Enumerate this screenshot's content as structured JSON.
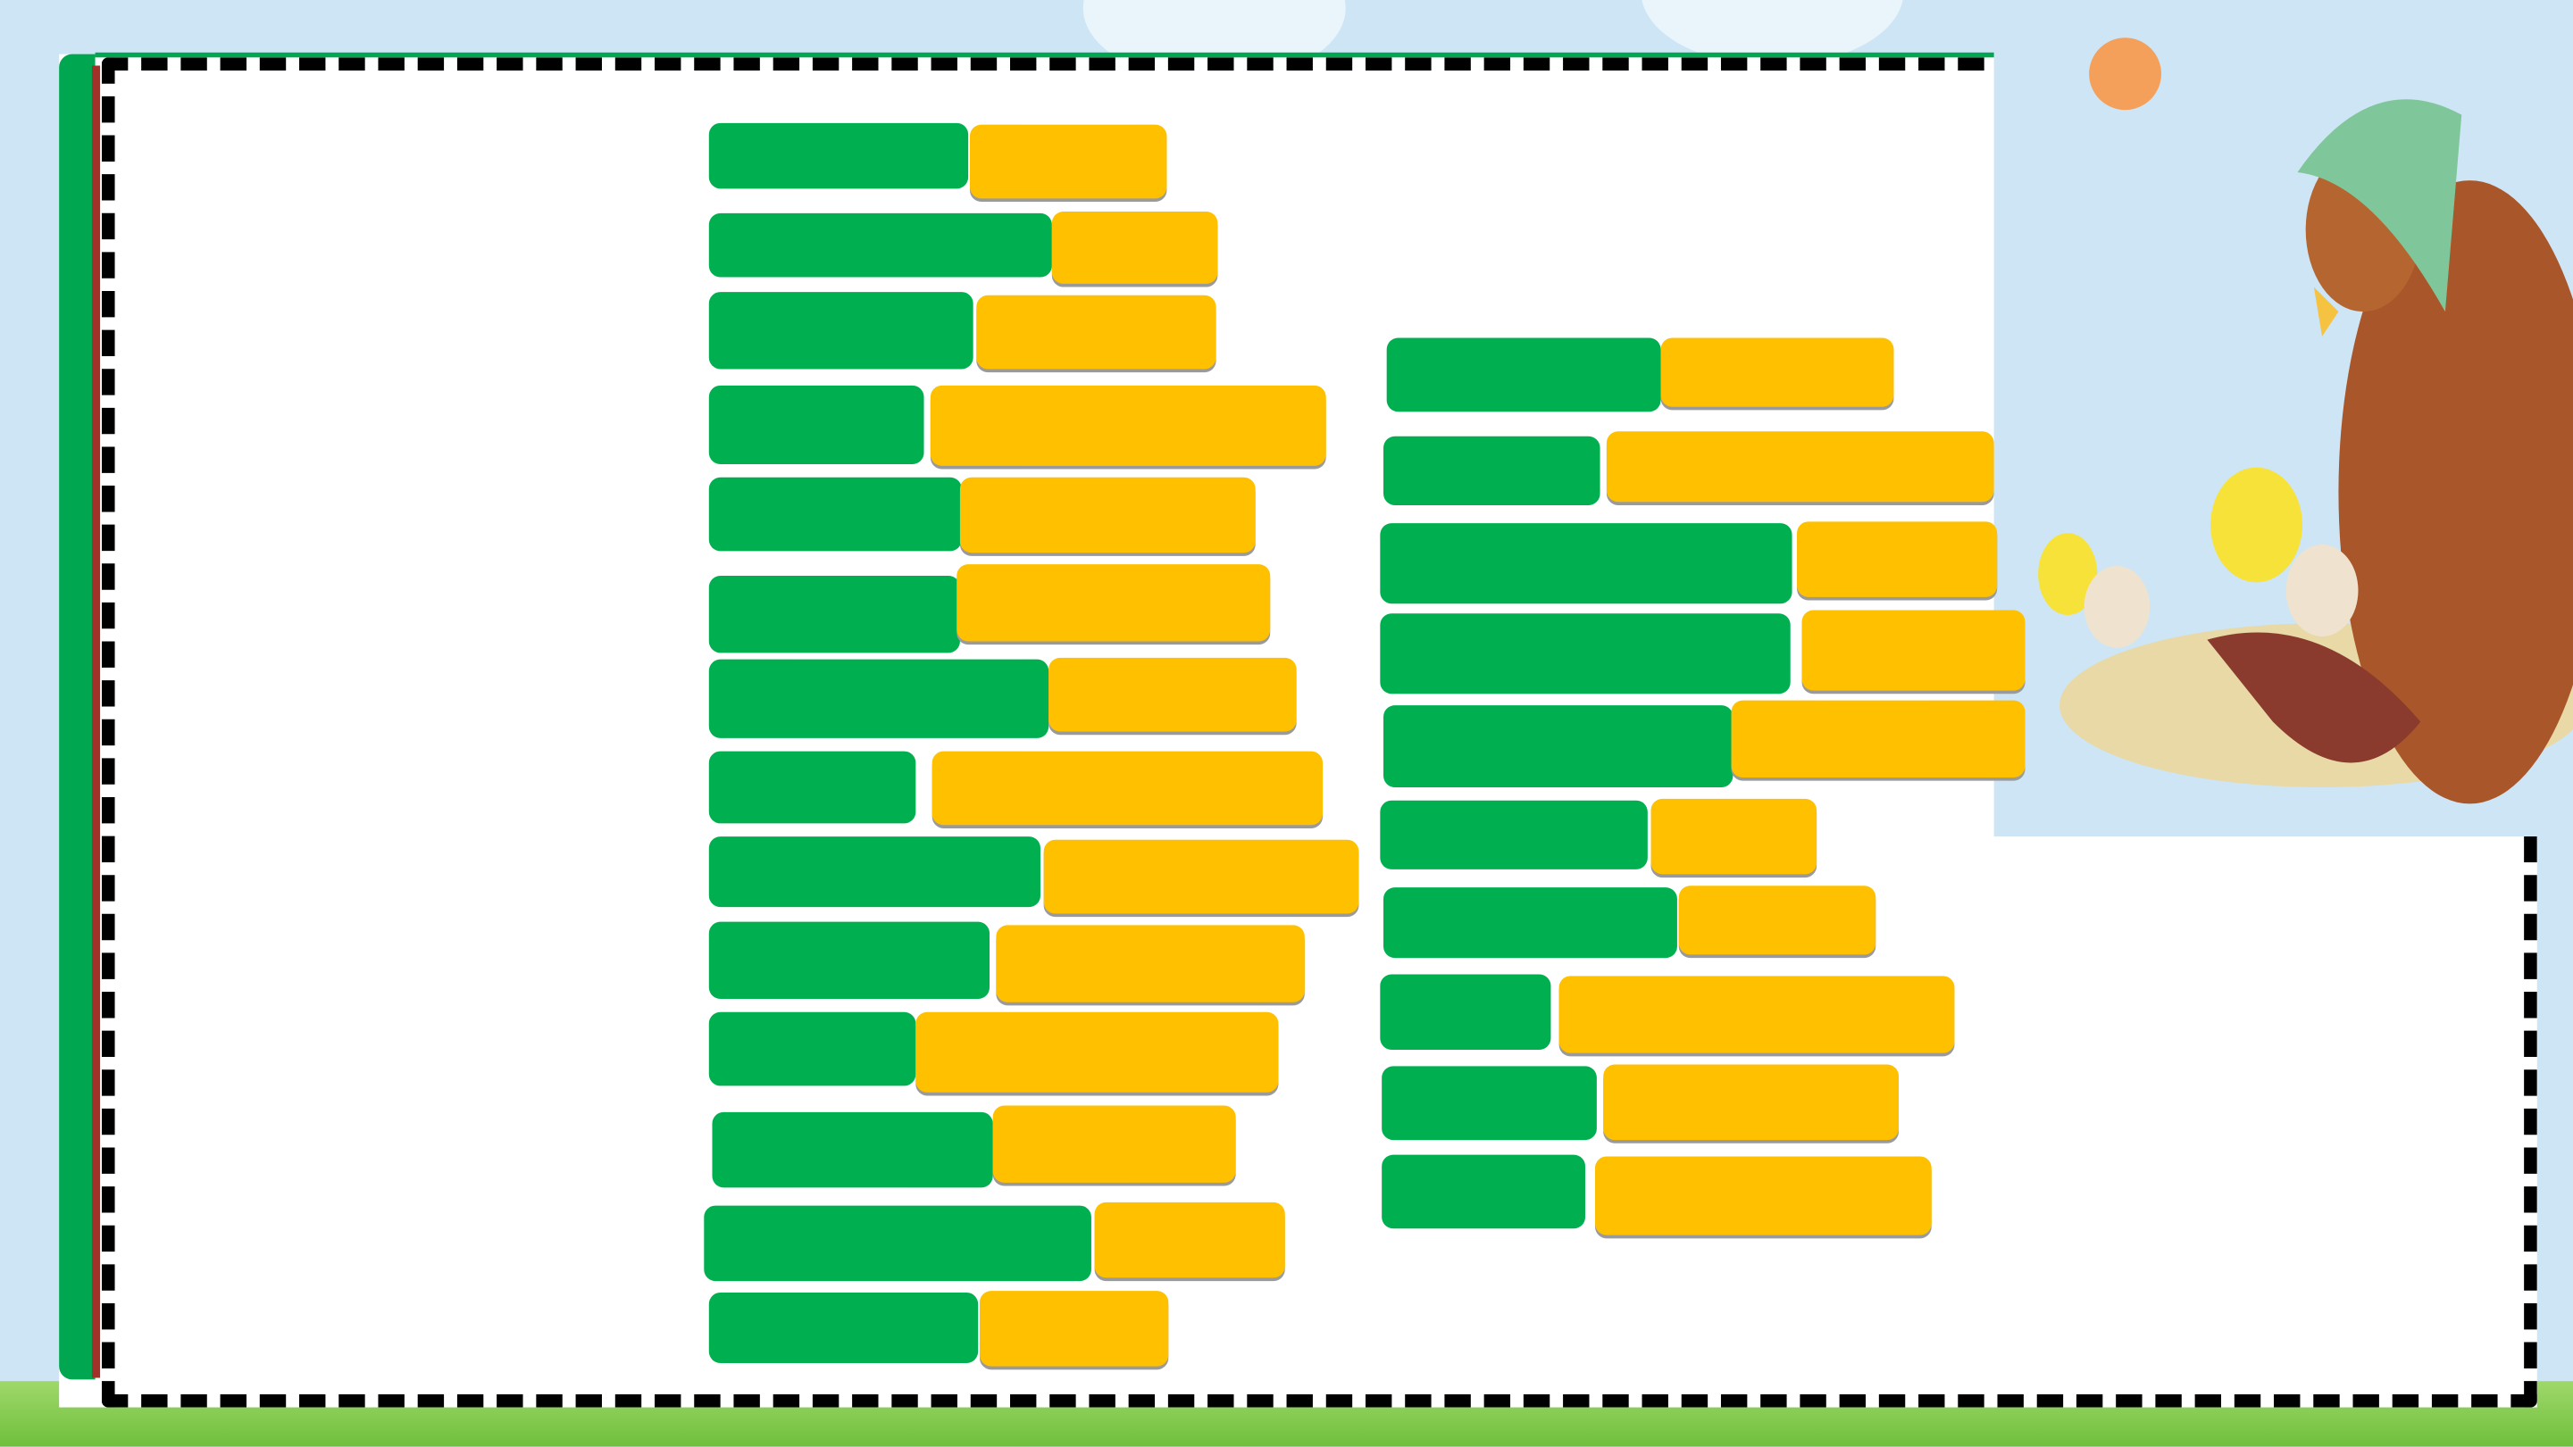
{
  "slide": {
    "colors": {
      "cover_green": "#00b050",
      "cover_yellow": "#ffc000",
      "frame_green": "#00a650",
      "frame_dash": "#000000",
      "sky": "#cde5f4"
    },
    "illustration": "hen-with-headscarf-and-hatching-chicks",
    "columns": [
      "left",
      "right"
    ]
  }
}
